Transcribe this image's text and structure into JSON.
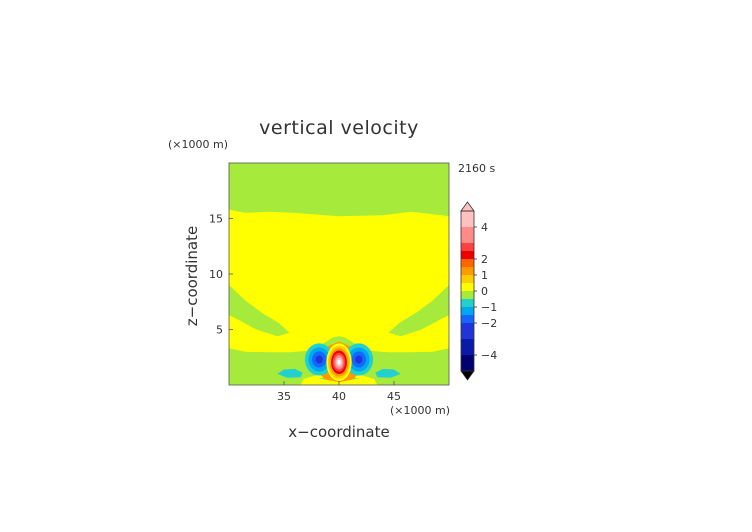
{
  "chart_data": {
    "type": "contour",
    "title": "vertical velocity",
    "time_label": "2160 s",
    "xlabel": "x−coordinate",
    "ylabel": "z−coordinate",
    "x_units": "(×1000 m)",
    "y_units": "(×1000 m)",
    "xlim": [
      30,
      50
    ],
    "ylim": [
      0,
      20
    ],
    "x_ticks": [
      {
        "value": 35,
        "label": "35"
      },
      {
        "value": 40,
        "label": "40"
      },
      {
        "value": 45,
        "label": "45"
      }
    ],
    "y_ticks": [
      {
        "value": 5,
        "label": "5"
      },
      {
        "value": 10,
        "label": "10"
      },
      {
        "value": 15,
        "label": "15"
      }
    ],
    "colorbar": {
      "range": [
        -5,
        5
      ],
      "ticks": [
        {
          "value": 4,
          "label": "4"
        },
        {
          "value": 2,
          "label": "2"
        },
        {
          "value": 1,
          "label": "1"
        },
        {
          "value": 0,
          "label": "0"
        },
        {
          "value": -1,
          "label": "−1"
        },
        {
          "value": -2,
          "label": "−2"
        },
        {
          "value": -4,
          "label": "−4"
        }
      ],
      "levels": [
        {
          "from": 4,
          "to": 5,
          "color": "#ffc0c0"
        },
        {
          "from": 3,
          "to": 4,
          "color": "#ff8a8a"
        },
        {
          "from": 2.5,
          "to": 3,
          "color": "#ff4040"
        },
        {
          "from": 2,
          "to": 2.5,
          "color": "#ee0000"
        },
        {
          "from": 1.5,
          "to": 2,
          "color": "#ff6600"
        },
        {
          "from": 1,
          "to": 1.5,
          "color": "#ff9900"
        },
        {
          "from": 0.5,
          "to": 1,
          "color": "#ffcc00"
        },
        {
          "from": 0,
          "to": 0.5,
          "color": "#ffff00"
        },
        {
          "from": -0.5,
          "to": 0,
          "color": "#a6ea3c"
        },
        {
          "from": -1,
          "to": -0.5,
          "color": "#22d0d0"
        },
        {
          "from": -1.5,
          "to": -1,
          "color": "#00a8f0"
        },
        {
          "from": -2,
          "to": -1.5,
          "color": "#1466ff"
        },
        {
          "from": -3,
          "to": -2,
          "color": "#1f35d8"
        },
        {
          "from": -4,
          "to": -3,
          "color": "#0a1aa8"
        },
        {
          "from": -5,
          "to": -4,
          "color": "#000070"
        }
      ],
      "over_color": "#ffc0c0",
      "under_color": "#000000"
    },
    "background_color": "#a6ea3c",
    "regions": [
      {
        "name": "positive-zone-upper",
        "level_color": "#ffff00",
        "points": [
          [
            30,
            15.8
          ],
          [
            31.5,
            15.5
          ],
          [
            33.5,
            15.6
          ],
          [
            36,
            15.5
          ],
          [
            40,
            15.2
          ],
          [
            44,
            15.3
          ],
          [
            46.5,
            15.6
          ],
          [
            48.5,
            15.4
          ],
          [
            50,
            15.2
          ],
          [
            50,
            9.0
          ],
          [
            48.5,
            7.6
          ],
          [
            47,
            6.5
          ],
          [
            45.5,
            5.6
          ],
          [
            44.5,
            4.7
          ],
          [
            45.6,
            4.4
          ],
          [
            47.5,
            5.0
          ],
          [
            49,
            5.8
          ],
          [
            50,
            6.3
          ],
          [
            50,
            3.3
          ],
          [
            48.5,
            3.0
          ],
          [
            46.5,
            2.95
          ],
          [
            44.5,
            2.95
          ],
          [
            42.6,
            3.1
          ],
          [
            41.5,
            3.7
          ],
          [
            40.5,
            4.3
          ],
          [
            40,
            4.4
          ],
          [
            39.5,
            4.3
          ],
          [
            38.5,
            3.7
          ],
          [
            37.4,
            3.1
          ],
          [
            35.5,
            2.95
          ],
          [
            33.5,
            2.95
          ],
          [
            31.5,
            3.0
          ],
          [
            30,
            3.3
          ],
          [
            30,
            6.3
          ],
          [
            31,
            5.8
          ],
          [
            32.5,
            5.0
          ],
          [
            34.4,
            4.4
          ],
          [
            35.5,
            4.7
          ],
          [
            34.5,
            5.6
          ],
          [
            33,
            6.5
          ],
          [
            31.5,
            7.6
          ],
          [
            30,
            9.0
          ]
        ]
      },
      {
        "name": "positive-zone-surface",
        "level_color": "#ffff00",
        "points": [
          [
            36.5,
            0
          ],
          [
            43.5,
            0
          ],
          [
            43.2,
            0.55
          ],
          [
            42,
            0.9
          ],
          [
            40,
            1.0
          ],
          [
            38,
            0.9
          ],
          [
            36.8,
            0.55
          ]
        ]
      },
      {
        "name": "weak-descent-left",
        "level_color": "#22d0d0",
        "points": [
          [
            34.4,
            1.0
          ],
          [
            35.3,
            0.65
          ],
          [
            36.5,
            0.7
          ],
          [
            36.7,
            1.1
          ],
          [
            36.0,
            1.45
          ],
          [
            35.0,
            1.4
          ]
        ]
      },
      {
        "name": "weak-descent-right",
        "level_color": "#22d0d0",
        "points": [
          [
            45.6,
            1.0
          ],
          [
            44.7,
            0.65
          ],
          [
            43.5,
            0.7
          ],
          [
            43.3,
            1.1
          ],
          [
            44.0,
            1.45
          ],
          [
            45.0,
            1.4
          ]
        ]
      },
      {
        "name": "weak-descent-center",
        "level_color": "#22d0d0",
        "points": [
          [
            38.1,
            0.55
          ],
          [
            40,
            0.45
          ],
          [
            41.9,
            0.55
          ],
          [
            40,
            0.75
          ]
        ]
      },
      {
        "name": "positive-core-outer",
        "level_color": "#ff9900",
        "points": [
          [
            38.1,
            1.2
          ],
          [
            38.7,
            0.5
          ],
          [
            40,
            0.25
          ],
          [
            41.3,
            0.5
          ],
          [
            41.9,
            1.2
          ],
          [
            41.8,
            2.6
          ],
          [
            41.0,
            3.5
          ],
          [
            40,
            3.9
          ],
          [
            39.0,
            3.5
          ],
          [
            38.2,
            2.6
          ]
        ]
      }
    ],
    "cells": [
      {
        "name": "downdraft-left",
        "center": [
          38.2,
          2.3
        ],
        "radius": [
          1.3,
          1.45
        ],
        "colors": [
          "#22d0d0",
          "#00a8f0",
          "#1466ff",
          "#1f35d8"
        ]
      },
      {
        "name": "downdraft-right",
        "center": [
          41.8,
          2.3
        ],
        "radius": [
          1.3,
          1.45
        ],
        "colors": [
          "#22d0d0",
          "#00a8f0",
          "#1466ff",
          "#1f35d8"
        ]
      },
      {
        "name": "updraft-core",
        "center": [
          40,
          2.05
        ],
        "radius": [
          1.15,
          1.7
        ],
        "colors": [
          "#ffff00",
          "#ffcc00",
          "#ff9900",
          "#ee0000",
          "#ff4040",
          "#ff8a8a",
          "#ffc0c0",
          "#ffffff"
        ]
      }
    ]
  }
}
